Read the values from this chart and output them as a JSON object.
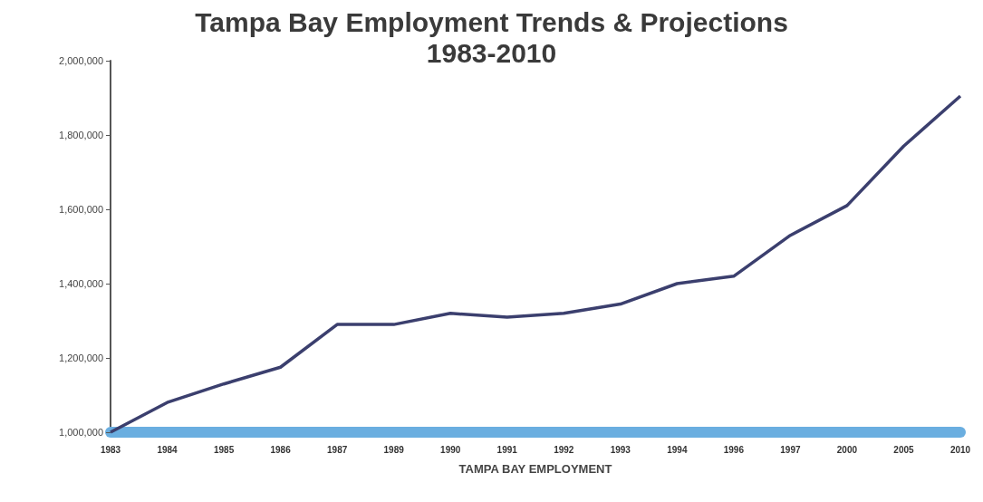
{
  "chart_data": {
    "type": "line",
    "title": "Tampa Bay Employment Trends & Projections\n1983-2010",
    "xlabel": "TAMPA BAY EMPLOYMENT",
    "categories": [
      "1983",
      "1984",
      "1985",
      "1986",
      "1987",
      "1989",
      "1990",
      "1991",
      "1992",
      "1993",
      "1994",
      "1996",
      "1997",
      "2000",
      "2005",
      "2010"
    ],
    "series": [
      {
        "color": "#3b3f6e",
        "values": [
          1000000,
          1080000,
          1130000,
          1175000,
          1290000,
          1290000,
          1320000,
          1310000,
          1320000,
          1345000,
          1400000,
          1420000,
          1530000,
          1610000,
          1770000,
          1905000
        ]
      }
    ],
    "ylim": [
      1000000,
      2000000
    ],
    "yticks": [
      {
        "value": 1000000,
        "label": "1,000,000"
      },
      {
        "value": 1200000,
        "label": "1,200,000"
      },
      {
        "value": 1400000,
        "label": "1,400,000"
      },
      {
        "value": 1600000,
        "label": "1,600,000"
      },
      {
        "value": 1800000,
        "label": "1,800,000"
      },
      {
        "value": 2000000,
        "label": "2,000,000"
      }
    ],
    "grid": false,
    "marker": "none",
    "line_style": "solid"
  }
}
